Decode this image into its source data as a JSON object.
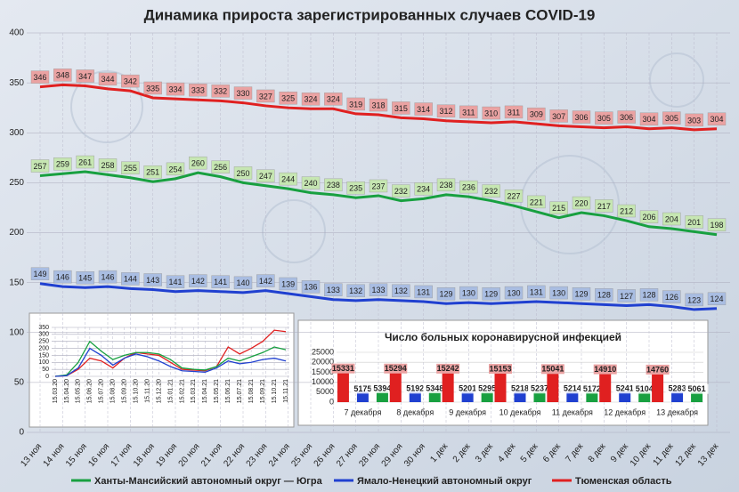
{
  "chart_data": [
    {
      "type": "line",
      "title": "Динамика прироста зарегистрированных случаев COVID-19",
      "categories": [
        "13 ноя",
        "14 ноя",
        "15 ноя",
        "16 ноя",
        "17 ноя",
        "18 ноя",
        "19 ноя",
        "20 ноя",
        "21 ноя",
        "22 ноя",
        "23 ноя",
        "24 ноя",
        "25 ноя",
        "26 ноя",
        "27 ноя",
        "28 ноя",
        "29 ноя",
        "30 ноя",
        "1 дек",
        "2 дек",
        "3 дек",
        "4 дек",
        "5 дек",
        "6 дек",
        "7 дек",
        "8 дек",
        "9 дек",
        "10 дек",
        "11 дек",
        "12 дек",
        "13 дек"
      ],
      "series": [
        {
          "name": "Тюменская область",
          "color": "#e02020",
          "values": [
            346,
            348,
            347,
            344,
            342,
            335,
            334,
            333,
            332,
            330,
            327,
            325,
            324,
            324,
            319,
            318,
            315,
            314,
            312,
            311,
            310,
            311,
            309,
            307,
            306,
            305,
            306,
            304,
            305,
            303,
            304
          ]
        },
        {
          "name": "Ханты-Мансийский автономный округ — Югра",
          "color": "#18a040",
          "values": [
            257,
            259,
            261,
            258,
            255,
            251,
            254,
            260,
            256,
            250,
            247,
            244,
            240,
            238,
            235,
            237,
            232,
            234,
            238,
            236,
            232,
            227,
            221,
            215,
            220,
            217,
            212,
            206,
            204,
            201,
            198
          ]
        },
        {
          "name": "Ямало-Ненецкий автономный округ",
          "color": "#2040d0",
          "values": [
            149,
            146,
            145,
            146,
            144,
            143,
            141,
            142,
            141,
            140,
            142,
            139,
            136,
            133,
            132,
            133,
            132,
            131,
            129,
            130,
            129,
            130,
            131,
            130,
            129,
            128,
            127,
            128,
            126,
            123,
            124
          ]
        }
      ],
      "ylim": [
        0,
        400
      ],
      "yticks": [
        0,
        50,
        100,
        150,
        200,
        250,
        300,
        350,
        400
      ],
      "grid": true,
      "legend": "bottom"
    },
    {
      "type": "line",
      "categories": [
        "15.03.20",
        "15.04.20",
        "15.05.20",
        "15.06.20",
        "15.07.20",
        "15.08.20",
        "15.09.20",
        "15.10.20",
        "15.11.20",
        "15.12.20",
        "15.01.21",
        "15.02.21",
        "15.03.21",
        "15.04.21",
        "15.05.21",
        "15.06.21",
        "15.07.21",
        "15.08.21",
        "15.09.21",
        "15.10.21",
        "15.11.21"
      ],
      "series": [
        {
          "color": "#e02020",
          "values": [
            0,
            5,
            50,
            130,
            110,
            60,
            130,
            170,
            160,
            150,
            100,
            50,
            45,
            40,
            70,
            210,
            160,
            200,
            250,
            330,
            320
          ]
        },
        {
          "color": "#18a040",
          "values": [
            0,
            10,
            100,
            250,
            180,
            120,
            150,
            170,
            170,
            160,
            120,
            60,
            50,
            45,
            70,
            130,
            110,
            140,
            170,
            210,
            190
          ]
        },
        {
          "color": "#2040d0",
          "values": [
            0,
            5,
            60,
            200,
            150,
            80,
            130,
            160,
            140,
            110,
            70,
            40,
            35,
            30,
            60,
            110,
            90,
            100,
            120,
            130,
            110
          ]
        }
      ],
      "ylim": [
        0,
        350
      ],
      "yticks": [
        0,
        50,
        100,
        150,
        200,
        250,
        300,
        350
      ],
      "grid": true
    },
    {
      "type": "bar",
      "title": "Число больных коронавирусной инфекцией",
      "categories": [
        "7 декабря",
        "8 декабря",
        "9 декабря",
        "10 декабря",
        "11 декабря",
        "12 декабря",
        "13 декабря"
      ],
      "series": [
        {
          "color": "#e02020",
          "values": [
            15331,
            15294,
            15242,
            15153,
            15041,
            14910,
            14760
          ]
        },
        {
          "color": "#2040d0",
          "values": [
            5175,
            5192,
            5201,
            5218,
            5214,
            5241,
            5283
          ]
        },
        {
          "color": "#18a040",
          "values": [
            5394,
            5348,
            5295,
            5237,
            5172,
            5104,
            5061
          ]
        }
      ],
      "ylim": [
        0,
        25000
      ],
      "yticks": [
        0,
        5000,
        10000,
        15000,
        20000,
        25000
      ],
      "grid": true
    }
  ]
}
